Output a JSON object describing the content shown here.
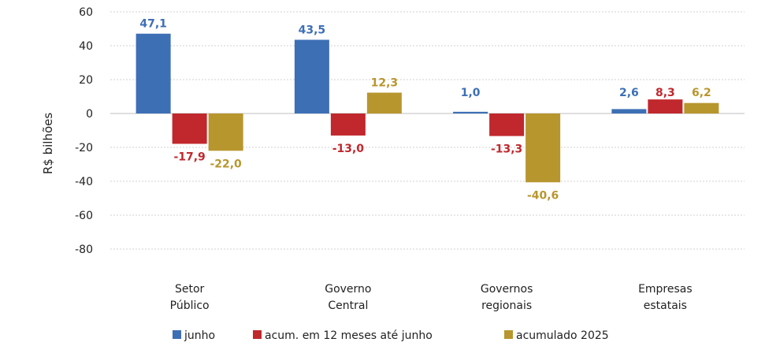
{
  "chart_data": {
    "type": "bar",
    "title": "",
    "xlabel": "",
    "ylabel": "R$ bilhões",
    "ylim": [
      -80,
      60
    ],
    "yticks": [
      60,
      40,
      20,
      0,
      -20,
      -40,
      -60,
      -80
    ],
    "grid": true,
    "legend_position": "bottom",
    "categories": [
      [
        "Setor",
        "Público"
      ],
      [
        "Governo",
        "Central"
      ],
      [
        "Governos",
        "regionais"
      ],
      [
        "Empresas",
        "estatais"
      ]
    ],
    "series": [
      {
        "name": "junho",
        "color": "#3d6fb5",
        "values": [
          47.1,
          43.5,
          1.0,
          2.6
        ],
        "labels": [
          "47,1",
          "43,5",
          "1,0",
          "2,6"
        ]
      },
      {
        "name": "acum. em 12 meses até junho",
        "color": "#c0282d",
        "values": [
          -17.9,
          -13.0,
          -13.3,
          8.3
        ],
        "labels": [
          "-17,9",
          "-13,0",
          "-13,3",
          "8,3"
        ]
      },
      {
        "name": "acumulado 2025",
        "color": "#b8962e",
        "values": [
          -22.0,
          12.3,
          -40.6,
          6.2
        ],
        "labels": [
          "-22,0",
          "12,3",
          "-40,6",
          "6,2"
        ]
      }
    ]
  }
}
